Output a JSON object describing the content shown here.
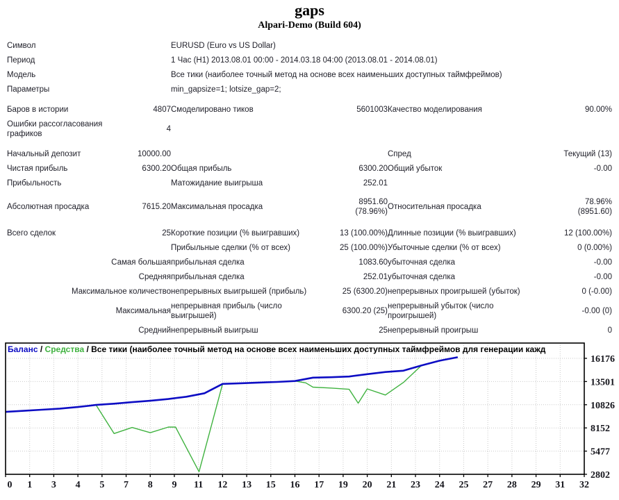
{
  "header": {
    "title": "gaps",
    "server": "Alpari-Demo (Build 604)"
  },
  "info": {
    "symbol_label": "Символ",
    "symbol_value": "EURUSD (Euro vs US Dollar)",
    "period_label": "Период",
    "period_value": "1 Час (H1) 2013.08.01 00:00 - 2014.03.18 04:00 (2013.08.01 - 2014.08.01)",
    "model_label": "Модель",
    "model_value": "Все тики (наиболее точный метод на основе всех наименьших доступных таймфреймов)",
    "params_label": "Параметры",
    "params_value": "min_gapsize=1; lotsize_gap=2;"
  },
  "stats": {
    "bars_label": "Баров в истории",
    "bars_value": "4807",
    "ticks_label": "Смоделировано тиков",
    "ticks_value": "5601003",
    "quality_label": "Качество моделирования",
    "quality_value": "90.00%",
    "mismatch_label": "Ошибки рассогласования графиков",
    "mismatch_value": "4",
    "deposit_label": "Начальный депозит",
    "deposit_value": "10000.00",
    "spread_label": "Спред",
    "spread_value": "Текущий (13)",
    "net_profit_label": "Чистая прибыль",
    "net_profit_value": "6300.20",
    "gross_profit_label": "Общая прибыль",
    "gross_profit_value": "6300.20",
    "gross_loss_label": "Общий убыток",
    "gross_loss_value": "-0.00",
    "profit_factor_label": "Прибыльность",
    "profit_factor_value": "",
    "expected_payoff_label": "Матожидание выигрыша",
    "expected_payoff_value": "252.01",
    "abs_dd_label": "Абсолютная просадка",
    "abs_dd_value": "7615.20",
    "max_dd_label": "Максимальная просадка",
    "max_dd_value": "8951.60\n(78.96%)",
    "rel_dd_label": "Относительная просадка",
    "rel_dd_value": "78.96%\n(8951.60)",
    "total_trades_label": "Всего сделок",
    "total_trades_value": "25",
    "short_label": "Короткие позиции (% выигравших)",
    "short_value": "13 (100.00%)",
    "long_label": "Длинные позиции (% выигравших)",
    "long_value": "12 (100.00%)",
    "profit_trades_label": "Прибыльные сделки (% от всех)",
    "profit_trades_value": "25 (100.00%)",
    "loss_trades_label": "Убыточные сделки (% от всех)",
    "loss_trades_value": "0 (0.00%)",
    "largest_label": "Самая большая",
    "profit_trade_label": "прибыльная сделка",
    "loss_trade_label": "убыточная сделка",
    "largest_profit_value": "1083.60",
    "largest_loss_value": "-0.00",
    "average_label": "Средняя",
    "avg_profit_value": "252.01",
    "avg_loss_value": "-0.00",
    "max_count_label": "Максимальное количество",
    "cons_wins_label": "непрерывных выигрышей (прибыль)",
    "cons_wins_value": "25 (6300.20)",
    "cons_losses_label": "непрерывных проигрышей (убыток)",
    "cons_losses_value": "0 (-0.00)",
    "maximal_label": "Максимальная",
    "cons_profit_label": "непрерывная прибыль (число выигрышей)",
    "cons_profit_value": "6300.20 (25)",
    "cons_loss_label": "непрерывный убыток (число проигрышей)",
    "cons_loss_value": "-0.00 (0)",
    "avg_label": "Средний",
    "avg_cons_win_label": "непрерывный выигрыш",
    "avg_cons_win_value": "25",
    "avg_cons_loss_label": "непрерывный проигрыш",
    "avg_cons_loss_value": "0"
  },
  "chart_data": {
    "type": "line",
    "legend": {
      "balance": "Баланс",
      "equity": "Средства",
      "sep": " / ",
      "note": "Все тики (наиболее точный метод на основе всех наименьших доступных таймфреймов для генерации кажд"
    },
    "colors": {
      "balance": "#0d0dc4",
      "equity": "#3fb23f",
      "grid": "#c9c9c9",
      "axis": "#000000"
    },
    "y_ticks": [
      16176,
      13501,
      10826,
      8152,
      5477,
      2802
    ],
    "x_ticks": [
      "0",
      "1",
      "3",
      "4",
      "5",
      "7",
      "8",
      "9",
      "11",
      "12",
      "13",
      "15",
      "16",
      "17",
      "19",
      "20",
      "21",
      "23",
      "24",
      "25",
      "27",
      "28",
      "29",
      "31",
      "32"
    ],
    "x_max": 32,
    "series": [
      {
        "name": "Баланс",
        "color": "#0d0dc4",
        "width": 2.6,
        "x": [
          0,
          1,
          2,
          3,
          4,
          5,
          6,
          7,
          8,
          9,
          10,
          11,
          12,
          13,
          14,
          15,
          16,
          17,
          18,
          19,
          20,
          21,
          22,
          23,
          24,
          25
        ],
        "y": [
          10000,
          10120,
          10250,
          10380,
          10560,
          10800,
          10950,
          11120,
          11280,
          11480,
          11750,
          12150,
          13230,
          13300,
          13380,
          13450,
          13560,
          13950,
          14000,
          14080,
          14350,
          14600,
          14750,
          15350,
          15900,
          16300.2
        ]
      },
      {
        "name": "Средства",
        "color": "#3fb23f",
        "width": 1.4,
        "x": [
          0,
          1,
          2,
          3,
          4,
          5,
          6,
          7,
          8,
          9,
          9.4,
          10.7,
          12,
          13,
          14,
          15,
          16,
          16.6,
          17,
          18,
          19,
          19.5,
          20,
          21,
          22,
          23,
          24,
          25
        ],
        "y": [
          10000,
          10120,
          10250,
          10380,
          10560,
          10800,
          7500,
          8200,
          7600,
          8250,
          8250,
          3100,
          13230,
          13300,
          13380,
          13450,
          13560,
          13350,
          12850,
          12750,
          12600,
          11000,
          12650,
          11950,
          13400,
          15350,
          15900,
          16300.2
        ]
      }
    ]
  }
}
